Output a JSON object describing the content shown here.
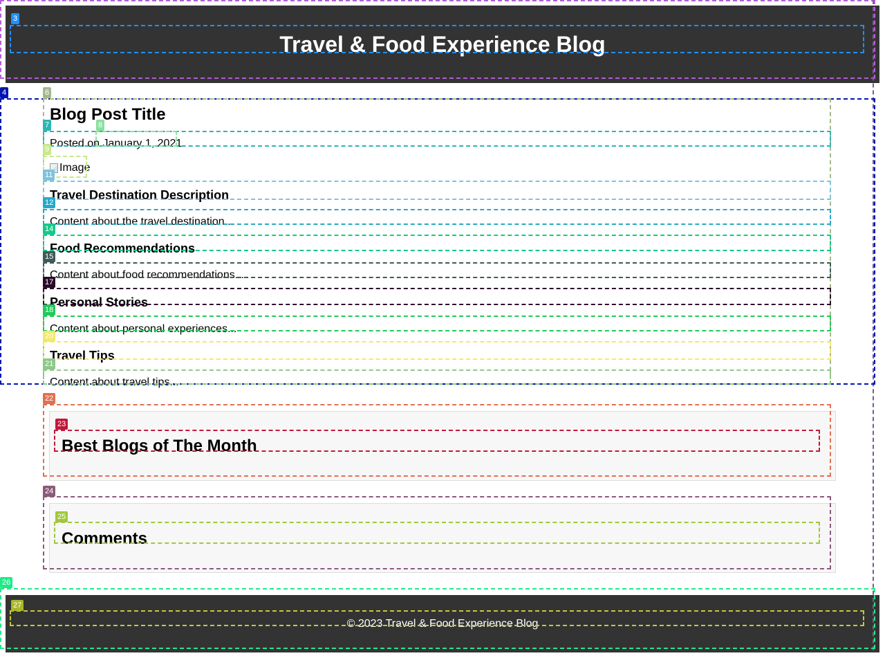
{
  "header": {
    "site_title": "Travel & Food Experience Blog"
  },
  "post": {
    "title": "Blog Post Title",
    "date": "Posted on January 1, 2021",
    "image_alt": "Image",
    "sections": [
      {
        "heading": "Travel Destination Description",
        "content": "Content about the travel destination..."
      },
      {
        "heading": "Food Recommendations",
        "content": "Content about food recommendations..."
      },
      {
        "heading": "Personal Stories",
        "content": "Content about personal experiences..."
      },
      {
        "heading": "Travel Tips",
        "content": "Content about travel tips..."
      }
    ]
  },
  "best_blogs": {
    "title": "Best Blogs of The Month"
  },
  "comments": {
    "title": "Comments"
  },
  "footer": {
    "text": "© 2023 Travel & Food Experience Blog"
  },
  "overlay_tags": [
    "3",
    "4",
    "6",
    "7",
    "8",
    "9",
    "11",
    "12",
    "14",
    "15",
    "17",
    "18",
    "20",
    "21",
    "22",
    "23",
    "24",
    "25",
    "26",
    "27"
  ]
}
